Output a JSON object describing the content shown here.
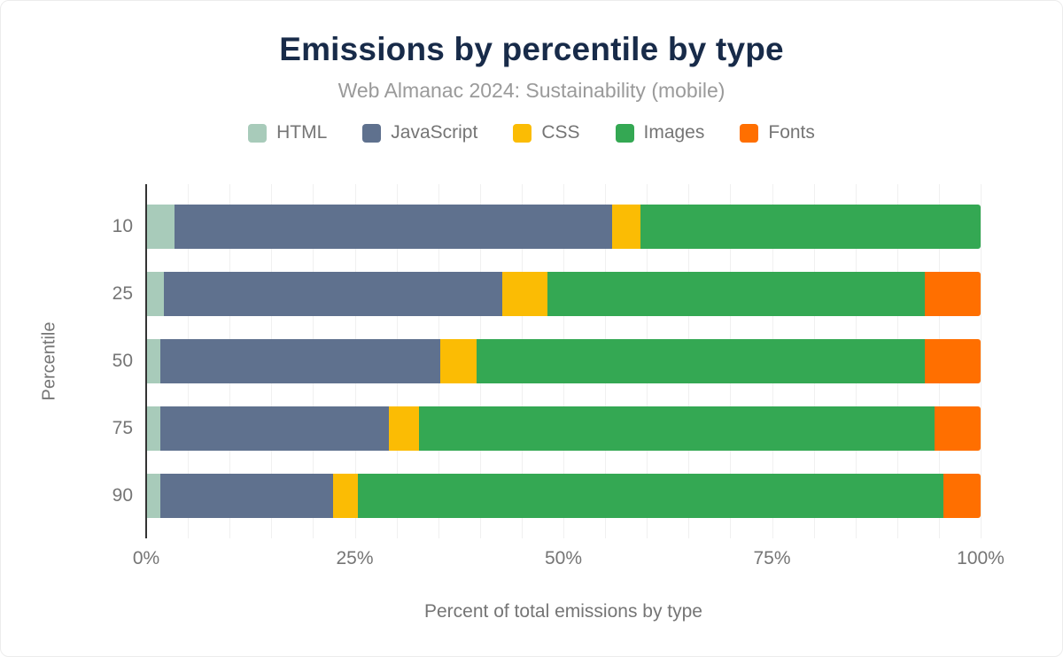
{
  "title": "Emissions by percentile by type",
  "subtitle": "Web Almanac 2024: Sustainability (mobile)",
  "chart_data": {
    "type": "bar",
    "orientation": "horizontal",
    "stacked": true,
    "title": "Emissions by percentile by type",
    "subtitle": "Web Almanac 2024: Sustainability (mobile)",
    "categories": [
      "10",
      "25",
      "50",
      "75",
      "90"
    ],
    "series": [
      {
        "name": "HTML",
        "color": "#a8cbba",
        "values": [
          3.4,
          2.1,
          1.7,
          1.7,
          1.7
        ]
      },
      {
        "name": "JavaScript",
        "color": "#5f718e",
        "values": [
          52.4,
          40.6,
          33.5,
          27.4,
          20.7
        ]
      },
      {
        "name": "CSS",
        "color": "#fbbc04",
        "values": [
          3.4,
          5.4,
          4.4,
          3.6,
          3.0
        ]
      },
      {
        "name": "Images",
        "color": "#34a853",
        "values": [
          40.8,
          45.2,
          53.7,
          61.8,
          70.1
        ]
      },
      {
        "name": "Fonts",
        "color": "#ff6f00",
        "values": [
          0,
          6.7,
          6.7,
          5.5,
          4.5
        ]
      }
    ],
    "xlabel": "Percent of total emissions by type",
    "ylabel": "Percentile",
    "xlim": [
      0,
      100
    ],
    "x_ticks": [
      "0%",
      "25%",
      "50%",
      "75%",
      "100%"
    ],
    "x_tick_values": [
      0,
      25,
      50,
      75,
      100
    ],
    "gridlines": "vertical every 5%",
    "legend_position": "top"
  },
  "colors": {
    "title": "#182b49",
    "subtitle": "#9a9a9a",
    "axis_text": "#757575",
    "axis_line": "#333333",
    "gridline": "#f0f0f0",
    "background": "#ffffff"
  }
}
